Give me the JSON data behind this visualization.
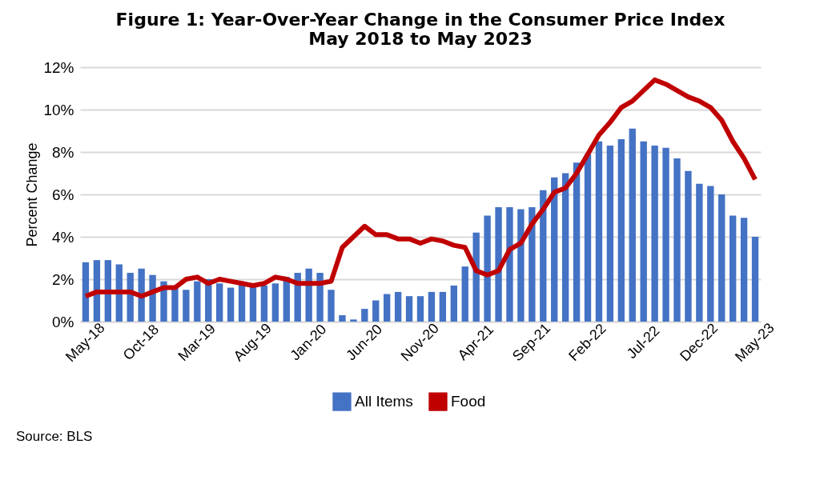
{
  "chart_data": {
    "type": "bar",
    "title": "Figure 1: Year-Over-Year Change in the Consumer Price Index\nMay 2018 to May 2023",
    "ylabel": "Percent Change",
    "categories": [
      "May-18",
      null,
      null,
      null,
      null,
      "Oct-18",
      null,
      null,
      null,
      null,
      "Mar-19",
      null,
      null,
      null,
      null,
      "Aug-19",
      null,
      null,
      null,
      null,
      "Jan-20",
      null,
      null,
      null,
      null,
      "Jun-20",
      null,
      null,
      null,
      null,
      "Nov-20",
      null,
      null,
      null,
      null,
      "Apr-21",
      null,
      null,
      null,
      null,
      "Sep-21",
      null,
      null,
      null,
      null,
      "Feb-22",
      null,
      null,
      null,
      null,
      "Jul-22",
      null,
      null,
      null,
      null,
      "Dec-22",
      null,
      null,
      null,
      null,
      "May-23"
    ],
    "series": [
      {
        "name": "All Items",
        "color": "#4472c4",
        "values": [
          2.8,
          2.9,
          2.9,
          2.7,
          2.3,
          2.5,
          2.2,
          1.9,
          1.6,
          1.5,
          1.9,
          2.0,
          1.8,
          1.6,
          1.8,
          1.7,
          1.7,
          1.8,
          2.1,
          2.3,
          2.5,
          2.3,
          1.5,
          0.3,
          0.1,
          0.6,
          1.0,
          1.3,
          1.4,
          1.2,
          1.2,
          1.4,
          1.4,
          1.7,
          2.6,
          4.2,
          5.0,
          5.4,
          5.4,
          5.3,
          5.4,
          6.2,
          6.8,
          7.0,
          7.5,
          7.9,
          8.5,
          8.3,
          8.6,
          9.1,
          8.5,
          8.3,
          8.2,
          7.7,
          7.1,
          6.5,
          6.4,
          6.0,
          5.0,
          4.9,
          4.0
        ]
      },
      {
        "name": "Food",
        "type": "line",
        "color": "#c00000",
        "values": [
          1.2,
          1.4,
          1.4,
          1.4,
          1.4,
          1.2,
          1.4,
          1.6,
          1.6,
          2.0,
          2.1,
          1.8,
          2.0,
          1.9,
          1.8,
          1.7,
          1.8,
          2.1,
          2.0,
          1.8,
          1.8,
          1.8,
          1.9,
          3.5,
          4.0,
          4.5,
          4.1,
          4.1,
          3.9,
          3.9,
          3.7,
          3.9,
          3.8,
          3.6,
          3.5,
          2.4,
          2.2,
          2.4,
          3.4,
          3.7,
          4.6,
          5.3,
          6.1,
          6.3,
          7.0,
          7.9,
          8.8,
          9.4,
          10.1,
          10.4,
          10.9,
          11.4,
          11.2,
          10.9,
          10.6,
          10.4,
          10.1,
          9.5,
          8.5,
          7.7,
          6.7
        ]
      }
    ],
    "ylim": [
      0,
      12
    ],
    "yticks": [
      {
        "value": 0,
        "label": "0%"
      },
      {
        "value": 2,
        "label": "2%"
      },
      {
        "value": 4,
        "label": "4%"
      },
      {
        "value": 6,
        "label": "6%"
      },
      {
        "value": 8,
        "label": "8%"
      },
      {
        "value": 10,
        "label": "10%"
      },
      {
        "value": 12,
        "label": "12%"
      }
    ],
    "grid": "y",
    "legend": "bottom",
    "line_style": "solid",
    "marker": "none",
    "annotations": [
      "Source: BLS"
    ]
  }
}
